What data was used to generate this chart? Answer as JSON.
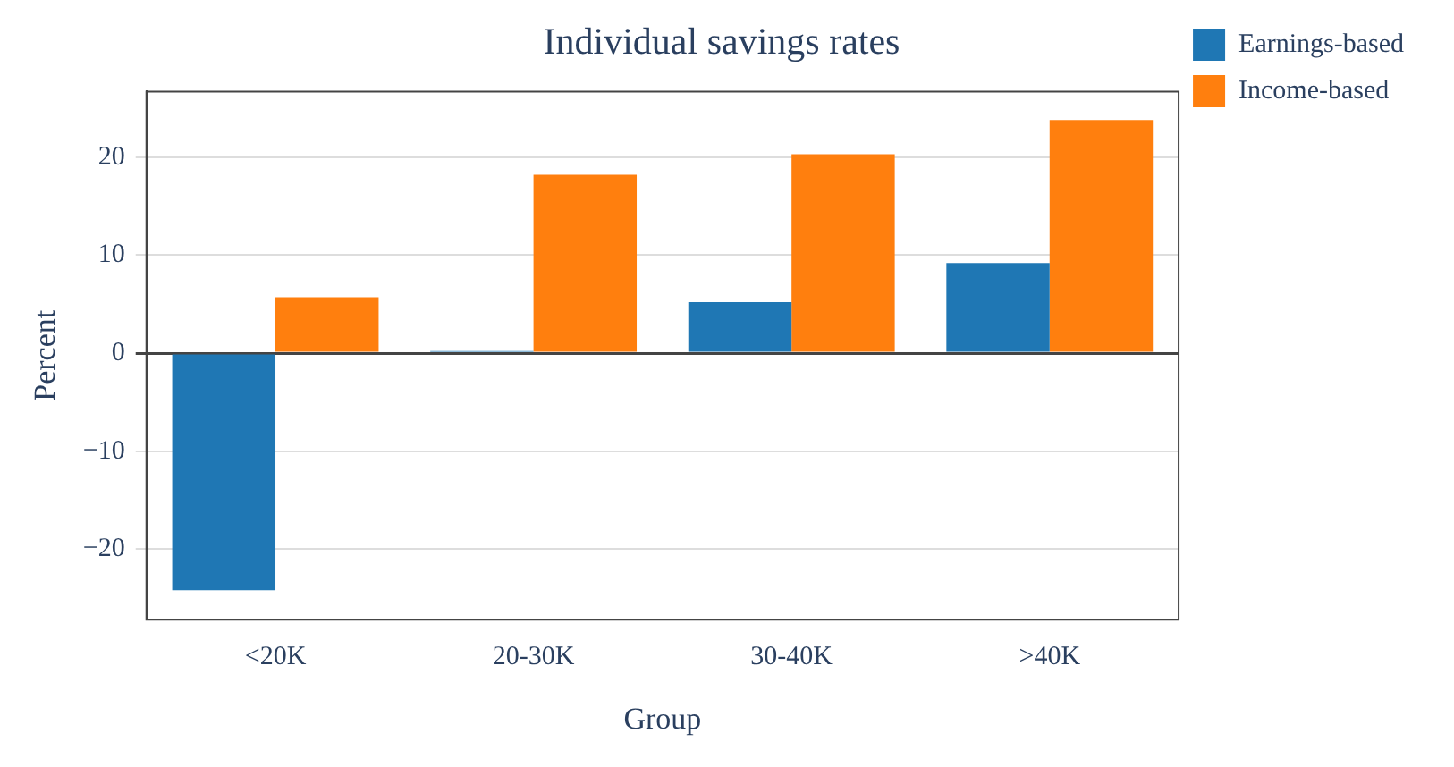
{
  "chart_data": {
    "type": "bar",
    "title": "Individual savings rates",
    "xlabel": "Group",
    "ylabel": "Percent",
    "categories": [
      "<20K",
      "20-30K",
      "30-40K",
      ">40K"
    ],
    "series": [
      {
        "name": "Earnings-based",
        "color": "#1f77b4",
        "values": [
          -24.2,
          0.2,
          5.2,
          9.2
        ]
      },
      {
        "name": "Income-based",
        "color": "#ff7f0e",
        "values": [
          5.7,
          18.2,
          20.3,
          23.8
        ]
      }
    ],
    "ylim": [
      -27.2,
      26.7
    ],
    "yticks": [
      {
        "value": -20,
        "label": "−20"
      },
      {
        "value": -10,
        "label": "−10"
      },
      0,
      10,
      20
    ],
    "grid": "y",
    "legend": "top right"
  }
}
